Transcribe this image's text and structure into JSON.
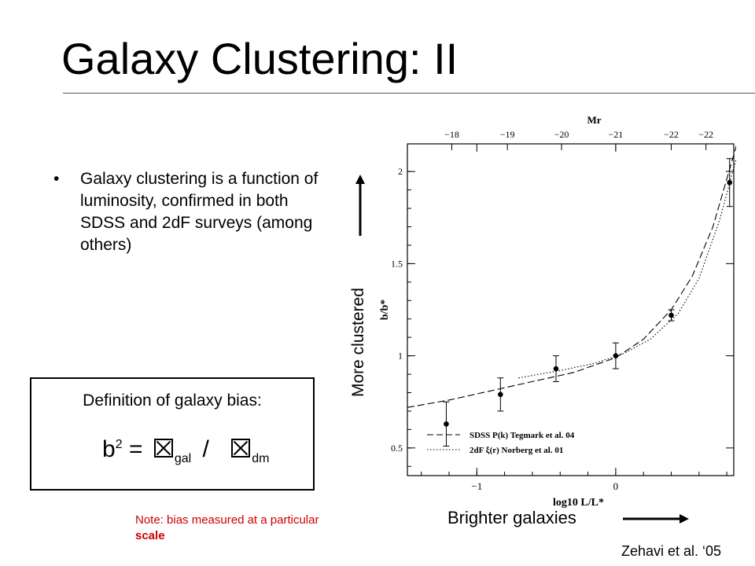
{
  "slide": {
    "title": "Galaxy Clustering: II",
    "bullets": [
      {
        "marker": "•",
        "text": "Galaxy clustering is a function of luminosity, confirmed in both SDSS and 2dF surveys (among others)"
      }
    ],
    "definition": {
      "title": "Definition of galaxy bias:",
      "formula_lhs": "b",
      "formula_exp": "2",
      "equals": "=",
      "xi_symbol_icon": "boxed-x-glyph",
      "sub_gal": "gal",
      "divide": "/",
      "sub_dm": "dm"
    },
    "note": {
      "text": "Note: bias measured at a particular ",
      "emphasis": "scale"
    },
    "annotations": {
      "more_clustered": "More clustered",
      "brighter": "Brighter galaxies"
    },
    "citation": "Zehavi et al. ‘05",
    "colors": {
      "note": "#cc0000",
      "text": "#000000"
    }
  },
  "chart_data": {
    "type": "scatter",
    "xlabel": "log10 L/L*",
    "ylabel": "b/b*",
    "top_axis_label": "Mr",
    "xlim": [
      -1.5,
      0.85
    ],
    "ylim": [
      0.35,
      2.15
    ],
    "x_ticks": [
      -1,
      0
    ],
    "y_ticks": [
      0.5,
      1,
      1.5,
      2
    ],
    "top_ticks": [
      {
        "label": "−18",
        "x": -1.18
      },
      {
        "label": "−19",
        "x": -0.78
      },
      {
        "label": "−20",
        "x": -0.39
      },
      {
        "label": "−21",
        "x": 0.0
      },
      {
        "label": "−22",
        "x": 0.4
      },
      {
        "label": "−22",
        "x": 0.65
      }
    ],
    "points": [
      {
        "x": -1.22,
        "y": 0.63,
        "err": 0.12
      },
      {
        "x": -0.83,
        "y": 0.79,
        "err": 0.09
      },
      {
        "x": -0.43,
        "y": 0.93,
        "err": 0.07
      },
      {
        "x": 0.0,
        "y": 1.0,
        "err": 0.07
      },
      {
        "x": 0.4,
        "y": 1.22,
        "err": 0.03
      },
      {
        "x": 0.82,
        "y": 1.94,
        "err": 0.13
      }
    ],
    "series": [
      {
        "name": "SDSS P(k) Tegmark et al. 04",
        "style": "dashed",
        "x": [
          -1.5,
          -1.2,
          -0.9,
          -0.6,
          -0.3,
          0.0,
          0.2,
          0.4,
          0.55,
          0.7,
          0.8,
          0.9
        ],
        "y": [
          0.72,
          0.76,
          0.81,
          0.86,
          0.91,
          0.99,
          1.09,
          1.25,
          1.43,
          1.7,
          1.96,
          2.22
        ]
      },
      {
        "name": "2dF ξ(r) Norberg et al. 01",
        "style": "dotted",
        "x": [
          -0.7,
          -0.4,
          -0.15,
          0.05,
          0.25,
          0.45,
          0.6,
          0.75,
          0.85,
          0.92
        ],
        "y": [
          0.88,
          0.92,
          0.96,
          1.01,
          1.09,
          1.23,
          1.42,
          1.74,
          2.02,
          2.21
        ]
      }
    ],
    "legend": [
      {
        "label": "SDSS P(k) Tegmark et al. 04",
        "style": "dashed"
      },
      {
        "label": "2dF ξ(r) Norberg et al. 01",
        "style": "dotted"
      }
    ],
    "legend_position": "bottom-right",
    "grid": false
  }
}
